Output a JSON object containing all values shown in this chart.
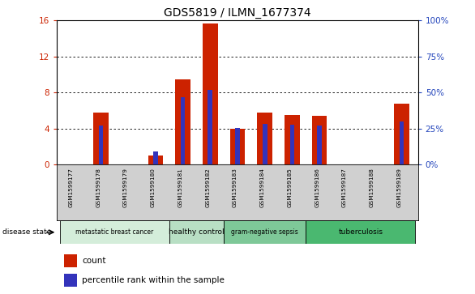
{
  "title": "GDS5819 / ILMN_1677374",
  "samples": [
    "GSM1599177",
    "GSM1599178",
    "GSM1599179",
    "GSM1599180",
    "GSM1599181",
    "GSM1599182",
    "GSM1599183",
    "GSM1599184",
    "GSM1599185",
    "GSM1599186",
    "GSM1599187",
    "GSM1599188",
    "GSM1599189"
  ],
  "count_values": [
    0.05,
    5.8,
    0.05,
    1.0,
    9.5,
    15.7,
    4.0,
    5.8,
    5.5,
    5.4,
    0.05,
    0.05,
    6.8
  ],
  "percentile_values": [
    0.0,
    27.0,
    0.0,
    9.0,
    47.0,
    52.0,
    25.5,
    28.0,
    27.5,
    27.0,
    0.0,
    0.0,
    30.0
  ],
  "count_color": "#cc2200",
  "percentile_color": "#3333bb",
  "ylim_left": [
    0,
    16
  ],
  "ylim_right": [
    0,
    100
  ],
  "yticks_left": [
    0,
    4,
    8,
    12,
    16
  ],
  "yticks_right": [
    0,
    25,
    50,
    75,
    100
  ],
  "ytick_labels_right": [
    "0%",
    "25%",
    "50%",
    "75%",
    "100%"
  ],
  "disease_groups": [
    {
      "label": "metastatic breast cancer",
      "start": 0,
      "end": 4,
      "color": "#d4edda"
    },
    {
      "label": "healthy control",
      "start": 4,
      "end": 6,
      "color": "#b8dfc4"
    },
    {
      "label": "gram-negative sepsis",
      "start": 6,
      "end": 9,
      "color": "#7ec898"
    },
    {
      "label": "tuberculosis",
      "start": 9,
      "end": 13,
      "color": "#4ab870"
    }
  ],
  "disease_state_label": "disease state",
  "legend_count": "count",
  "legend_percentile": "percentile rank within the sample",
  "bar_width": 0.55,
  "background_color": "#ffffff",
  "plot_bg_color": "#ffffff",
  "grid_color": "#000000",
  "tick_label_color_left": "#cc2200",
  "tick_label_color_right": "#2244bb",
  "tick_area_color": "#d0d0d0"
}
